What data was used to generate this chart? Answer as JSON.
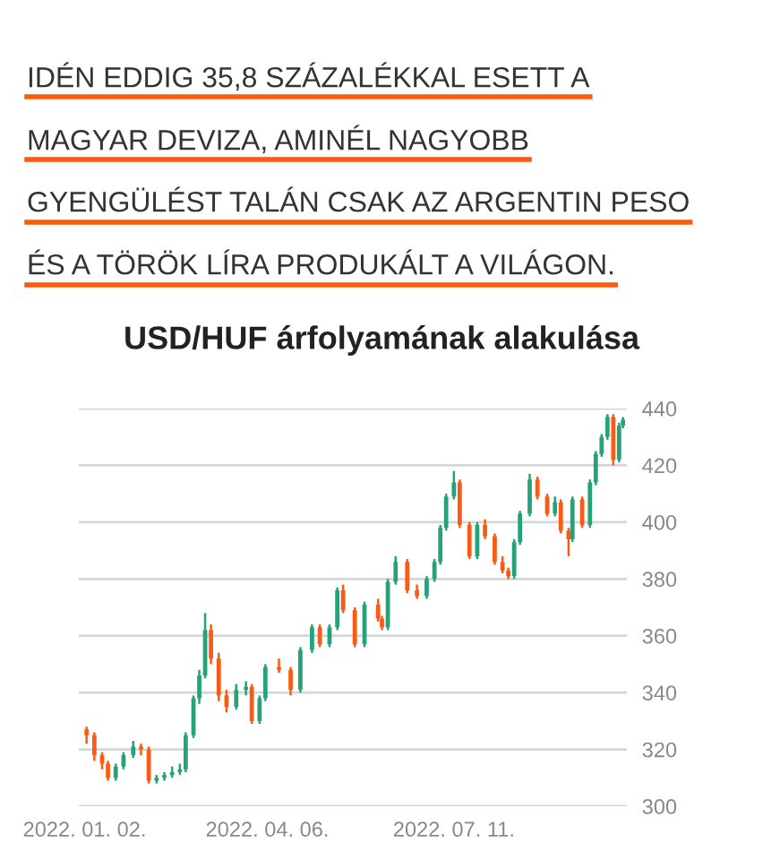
{
  "chart_data": {
    "type": "candlestick",
    "title": "USD/HUF árfolyamának alakulása",
    "annotations": [
      "IDÉN EDDIG 35,8 SZÁZALÉKKAL ESETT A\nMAGYAR DEVIZA, AMINÉL NAGYOBB\nGYENGÜLÉST TALÁN CSAK AZ ARGENTIN PESO\nÉS A TÖRÖK LÍRA PRODUKÁLT A VILÁGON."
    ],
    "x": [
      "2022-01-03",
      "2022-01-07",
      "2022-01-11",
      "2022-01-14",
      "2022-01-18",
      "2022-01-22",
      "2022-01-27",
      "2022-01-31",
      "2022-02-04",
      "2022-02-08",
      "2022-02-12",
      "2022-02-16",
      "2022-02-20",
      "2022-02-23",
      "2022-02-27",
      "2022-03-02",
      "2022-03-05",
      "2022-03-08",
      "2022-03-12",
      "2022-03-16",
      "2022-03-21",
      "2022-03-26",
      "2022-03-29",
      "2022-04-02",
      "2022-04-05",
      "2022-04-12",
      "2022-04-18",
      "2022-04-23",
      "2022-04-29",
      "2022-05-03",
      "2022-05-08",
      "2022-05-12",
      "2022-05-15",
      "2022-05-21",
      "2022-05-26",
      "2022-06-02",
      "2022-06-04",
      "2022-06-07",
      "2022-06-11",
      "2022-06-17",
      "2022-06-22",
      "2022-06-27",
      "2022-07-01",
      "2022-07-04",
      "2022-07-07",
      "2022-07-11",
      "2022-07-14",
      "2022-07-19",
      "2022-07-23",
      "2022-07-27",
      "2022-08-01",
      "2022-08-05",
      "2022-08-08",
      "2022-08-11",
      "2022-08-14",
      "2022-08-19",
      "2022-08-23",
      "2022-08-28",
      "2022-09-01",
      "2022-09-04",
      "2022-09-08",
      "2022-09-10",
      "2022-09-15",
      "2022-09-19",
      "2022-09-22",
      "2022-09-25",
      "2022-09-28",
      "2022-10-01",
      "2022-10-04",
      "2022-10-06"
    ],
    "ohlc": [
      [
        327,
        328,
        322,
        325
      ],
      [
        325,
        326,
        316,
        318
      ],
      [
        318,
        319,
        313,
        315
      ],
      [
        315,
        316,
        309,
        310
      ],
      [
        310,
        315,
        309,
        314
      ],
      [
        314,
        319,
        313,
        318
      ],
      [
        318,
        323,
        317,
        321
      ],
      [
        321,
        322,
        318,
        320
      ],
      [
        320,
        321,
        308,
        309
      ],
      [
        309,
        311,
        308,
        310
      ],
      [
        310,
        312,
        309,
        311
      ],
      [
        311,
        314,
        310,
        312
      ],
      [
        312,
        315,
        311,
        313
      ],
      [
        313,
        326,
        312,
        325
      ],
      [
        325,
        339,
        324,
        338
      ],
      [
        338,
        348,
        336,
        346
      ],
      [
        346,
        368,
        345,
        362
      ],
      [
        362,
        364,
        350,
        352
      ],
      [
        352,
        354,
        337,
        339
      ],
      [
        339,
        341,
        333,
        335
      ],
      [
        335,
        343,
        334,
        341
      ],
      [
        341,
        344,
        339,
        342
      ],
      [
        342,
        343,
        329,
        330
      ],
      [
        330,
        339,
        329,
        338
      ],
      [
        338,
        350,
        337,
        349
      ],
      [
        349,
        352,
        347,
        348
      ],
      [
        348,
        349,
        339,
        341
      ],
      [
        341,
        356,
        340,
        355
      ],
      [
        355,
        364,
        354,
        363
      ],
      [
        363,
        364,
        356,
        357
      ],
      [
        357,
        364,
        356,
        363
      ],
      [
        363,
        377,
        362,
        376
      ],
      [
        376,
        378,
        368,
        369
      ],
      [
        369,
        370,
        356,
        357
      ],
      [
        357,
        372,
        356,
        371
      ],
      [
        371,
        373,
        365,
        366
      ],
      [
        366,
        367,
        362,
        363
      ],
      [
        363,
        380,
        362,
        379
      ],
      [
        379,
        388,
        378,
        386
      ],
      [
        386,
        387,
        375,
        376
      ],
      [
        376,
        378,
        373,
        374
      ],
      [
        374,
        381,
        373,
        380
      ],
      [
        380,
        387,
        379,
        386
      ],
      [
        386,
        399,
        385,
        398
      ],
      [
        398,
        410,
        397,
        409
      ],
      [
        409,
        418,
        408,
        414
      ],
      [
        414,
        415,
        398,
        399
      ],
      [
        399,
        400,
        387,
        388
      ],
      [
        388,
        400,
        387,
        399
      ],
      [
        399,
        401,
        394,
        395
      ],
      [
        395,
        396,
        385,
        386
      ],
      [
        386,
        388,
        382,
        383
      ],
      [
        383,
        384,
        380,
        381
      ],
      [
        381,
        394,
        380,
        393
      ],
      [
        393,
        404,
        392,
        403
      ],
      [
        403,
        417,
        402,
        415
      ],
      [
        415,
        416,
        408,
        409
      ],
      [
        409,
        410,
        402,
        403
      ],
      [
        403,
        409,
        402,
        407
      ],
      [
        407,
        408,
        396,
        397
      ],
      [
        397,
        398,
        388,
        394
      ],
      [
        394,
        409,
        393,
        408
      ],
      [
        408,
        409,
        398,
        399
      ],
      [
        399,
        415,
        398,
        414
      ],
      [
        414,
        425,
        413,
        424
      ],
      [
        424,
        431,
        423,
        430
      ],
      [
        430,
        438,
        429,
        437
      ],
      [
        437,
        438,
        420,
        422
      ],
      [
        422,
        435,
        421,
        434
      ],
      [
        434,
        437,
        433,
        436
      ]
    ],
    "colors": [
      "#fa5b14",
      "#fa5b14",
      "#fa5b14",
      "#fa5b14",
      "#26a27b",
      "#26a27b",
      "#26a27b",
      "#fa5b14",
      "#fa5b14",
      "#26a27b",
      "#26a27b",
      "#26a27b",
      "#26a27b",
      "#26a27b",
      "#26a27b",
      "#26a27b",
      "#26a27b",
      "#fa5b14",
      "#fa5b14",
      "#fa5b14",
      "#26a27b",
      "#26a27b",
      "#fa5b14",
      "#26a27b",
      "#26a27b",
      "#fa5b14",
      "#fa5b14",
      "#26a27b",
      "#26a27b",
      "#fa5b14",
      "#26a27b",
      "#26a27b",
      "#fa5b14",
      "#fa5b14",
      "#26a27b",
      "#fa5b14",
      "#fa5b14",
      "#26a27b",
      "#26a27b",
      "#fa5b14",
      "#fa5b14",
      "#26a27b",
      "#26a27b",
      "#26a27b",
      "#26a27b",
      "#26a27b",
      "#fa5b14",
      "#fa5b14",
      "#26a27b",
      "#fa5b14",
      "#fa5b14",
      "#fa5b14",
      "#fa5b14",
      "#26a27b",
      "#26a27b",
      "#26a27b",
      "#fa5b14",
      "#fa5b14",
      "#26a27b",
      "#fa5b14",
      "#fa5b14",
      "#26a27b",
      "#fa5b14",
      "#26a27b",
      "#26a27b",
      "#26a27b",
      "#26a27b",
      "#fa5b14",
      "#26a27b",
      "#26a27b"
    ],
    "xlim": [
      "2021-12-30",
      "2022-10-08"
    ],
    "xticks": [
      {
        "value": "2022-01-02",
        "label": "2022. 01. 02."
      },
      {
        "value": "2022-04-06",
        "label": "2022. 04. 06."
      },
      {
        "value": "2022-07-11",
        "label": "2022. 07. 11."
      }
    ],
    "ylim": [
      300,
      440
    ],
    "yticks": [
      300,
      320,
      340,
      360,
      380,
      400,
      420,
      440
    ],
    "grid": "y",
    "legend": false
  }
}
